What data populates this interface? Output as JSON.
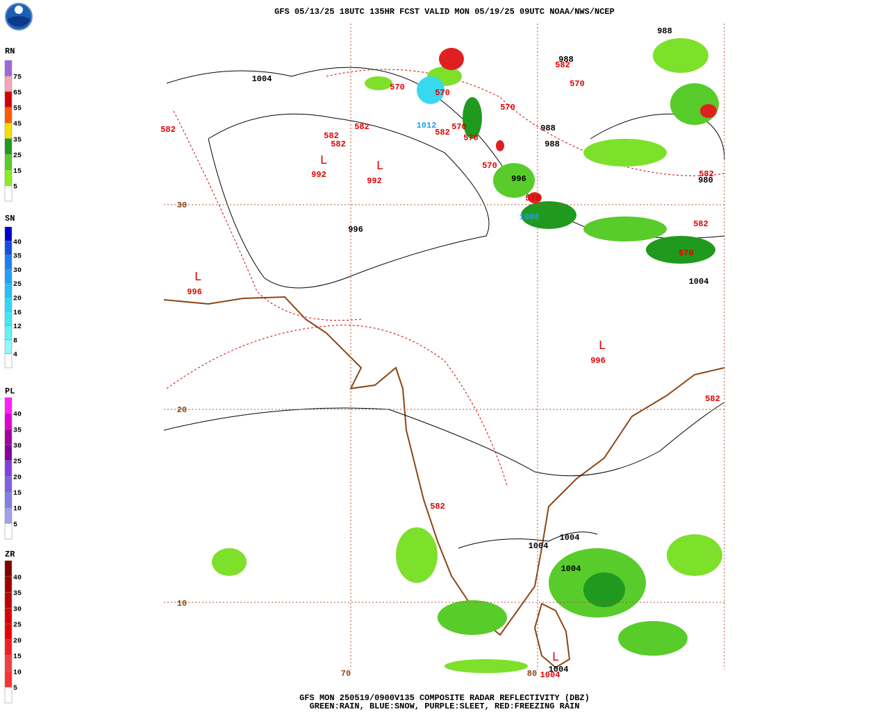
{
  "header": {
    "title": "GFS 05/13/25 18UTC 135HR FCST VALID MON 05/19/25 09UTC NOAA/NWS/NCEP"
  },
  "legends": [
    {
      "title": "RN",
      "ticks": [
        "75",
        "65",
        "55",
        "45",
        "35",
        "25",
        "15",
        "5"
      ],
      "colors": [
        "#9a6ad8",
        "#f4a6b8",
        "#d40000",
        "#ff5a00",
        "#f4e000",
        "#1f9a1f",
        "#58cc2a",
        "#88ee22",
        "#ffffff"
      ]
    },
    {
      "title": "SN",
      "ticks": [
        "40",
        "35",
        "30",
        "25",
        "20",
        "16",
        "12",
        "8",
        "4"
      ],
      "colors": [
        "#0000c8",
        "#1050e0",
        "#1a80f0",
        "#20a0f8",
        "#28c0f8",
        "#30d8f8",
        "#40e8f8",
        "#60f4f8",
        "#90f8f8",
        "#ffffff"
      ]
    },
    {
      "title": "PL",
      "ticks": [
        "40",
        "35",
        "30",
        "25",
        "20",
        "15",
        "10",
        "5"
      ],
      "colors": [
        "#ff20ff",
        "#e000d0",
        "#a000a0",
        "#8000a0",
        "#8040e0",
        "#8060e0",
        "#8080e0",
        "#a0a0e8",
        "#ffffff"
      ]
    },
    {
      "title": "ZR",
      "ticks": [
        "40",
        "35",
        "30",
        "25",
        "20",
        "15",
        "10",
        "5"
      ],
      "colors": [
        "#800000",
        "#a00000",
        "#c00000",
        "#d80000",
        "#e80000",
        "#f02020",
        "#f04040",
        "#ff3030",
        "#ffffff"
      ]
    }
  ],
  "map": {
    "labels": [
      "1004",
      "988",
      "582",
      "570",
      "570",
      "570",
      "570",
      "582",
      "582",
      "582",
      "582",
      "570",
      "570",
      "570",
      "1012",
      "988",
      "988",
      "996",
      "570",
      "1008",
      "996",
      "980",
      "582",
      "582",
      "570",
      "1004",
      "992",
      "992",
      "996",
      "996",
      "582",
      "582",
      "1004",
      "1004",
      "1004",
      "1004",
      "1004",
      "988",
      "582"
    ],
    "lows": [
      "L",
      "L",
      "L",
      "L",
      "L"
    ],
    "grid_labels": [
      "30",
      "20",
      "10",
      "70",
      "80"
    ]
  },
  "footer": {
    "line1": "GFS MON 250519/0900V135 COMPOSITE RADAR REFLECTIVITY (DBZ)",
    "line2": "GREEN:RAIN, BLUE:SNOW, PURPLE:SLEET, RED:FREEZING RAIN"
  }
}
